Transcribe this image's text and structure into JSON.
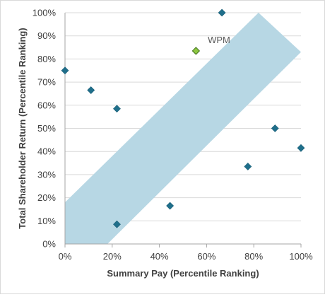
{
  "chart_data": {
    "type": "scatter",
    "xlabel": "Summary Pay (Percentile Ranking)",
    "ylabel": "Total Shareholder Return (Percentile Ranking)",
    "xlim": [
      0,
      100
    ],
    "ylim": [
      0,
      100
    ],
    "x_ticks": [
      "0%",
      "20%",
      "40%",
      "60%",
      "80%",
      "100%"
    ],
    "y_ticks": [
      "0%",
      "10%",
      "20%",
      "30%",
      "40%",
      "50%",
      "60%",
      "70%",
      "80%",
      "90%",
      "100%"
    ],
    "grid": "horizontal",
    "band": {
      "polygon": [
        [
          0,
          18
        ],
        [
          0,
          0
        ],
        [
          18,
          0
        ],
        [
          100,
          83
        ],
        [
          82,
          100
        ]
      ],
      "color": "#b7d7e4"
    },
    "points": [
      {
        "x": 0,
        "y": 75,
        "highlight": false
      },
      {
        "x": 11,
        "y": 66.5,
        "highlight": false
      },
      {
        "x": 22,
        "y": 58.5,
        "highlight": false
      },
      {
        "x": 22,
        "y": 8.5,
        "highlight": false
      },
      {
        "x": 44.5,
        "y": 16.5,
        "highlight": false
      },
      {
        "x": 55.5,
        "y": 83.5,
        "highlight": true
      },
      {
        "x": 66.5,
        "y": 100,
        "highlight": false
      },
      {
        "x": 77.5,
        "y": 33.5,
        "highlight": false
      },
      {
        "x": 89,
        "y": 50,
        "highlight": false
      },
      {
        "x": 100,
        "y": 41.5,
        "highlight": false
      }
    ],
    "annotation": {
      "text": "WPM",
      "x": 60.5,
      "y": 88
    },
    "colors": {
      "marker": "#1f6f8b",
      "highlight": "#8cc63f",
      "grid": "#d9d9d9",
      "axis": "#a6a6a6"
    }
  }
}
